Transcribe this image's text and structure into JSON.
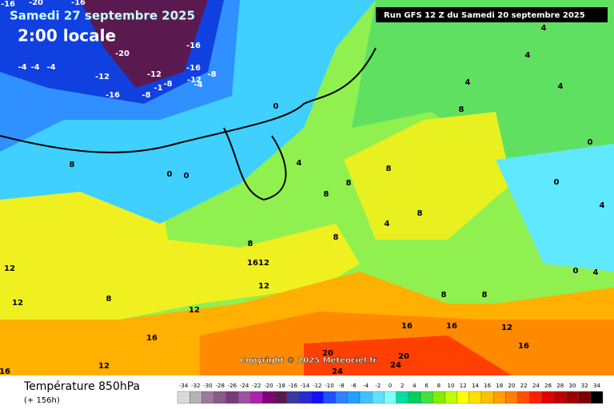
{
  "header": {
    "title": "Samedi 27 septembre 2025",
    "time": "2:00 locale",
    "run": "Run GFS 12 Z du Samedi 20 septembre 2025"
  },
  "map": {
    "copyright": "Copyright © 2025 Meteociel.fr",
    "contour_labels": [
      -16,
      -20,
      -16,
      -20,
      -16,
      -16,
      -12,
      -8,
      -4,
      -12,
      -12,
      -16,
      -8,
      -1,
      -8,
      -4,
      -4,
      -4,
      0,
      4,
      4,
      4,
      4,
      8,
      0,
      8,
      0,
      0,
      4,
      8,
      8,
      8,
      8,
      8,
      4,
      8,
      16,
      12,
      12,
      12,
      12,
      8,
      12,
      16,
      16,
      12,
      16,
      16,
      12,
      16,
      20,
      20,
      24,
      24,
      4,
      0,
      4,
      8,
      8,
      0
    ]
  },
  "footer": {
    "variable": "Température 850hPa",
    "lead": "(+ 156h)"
  },
  "legend": {
    "values": [
      -34,
      -32,
      -30,
      -28,
      -26,
      -24,
      -22,
      -20,
      -18,
      -16,
      -14,
      -12,
      -10,
      -8,
      -6,
      -4,
      -2,
      0,
      2,
      4,
      6,
      8,
      10,
      12,
      14,
      16,
      18,
      20,
      22,
      24,
      26,
      28,
      30,
      32,
      34
    ],
    "colors": [
      "#d9d9d9",
      "#b3b3b3",
      "#9a7a9a",
      "#8a5a8a",
      "#7a3a7a",
      "#a050a0",
      "#b020b0",
      "#800080",
      "#5a1a50",
      "#3a3aa0",
      "#2a2ad0",
      "#1010ff",
      "#2050ff",
      "#3080ff",
      "#20a0ff",
      "#40c0ff",
      "#60e0ff",
      "#80ffff",
      "#00e0a0",
      "#00d060",
      "#40e040",
      "#80f000",
      "#c0ff00",
      "#ffff00",
      "#ffe000",
      "#ffc000",
      "#ffa000",
      "#ff8000",
      "#ff5000",
      "#ff2000",
      "#e00000",
      "#c00000",
      "#a00000",
      "#800000",
      "#000000"
    ]
  }
}
